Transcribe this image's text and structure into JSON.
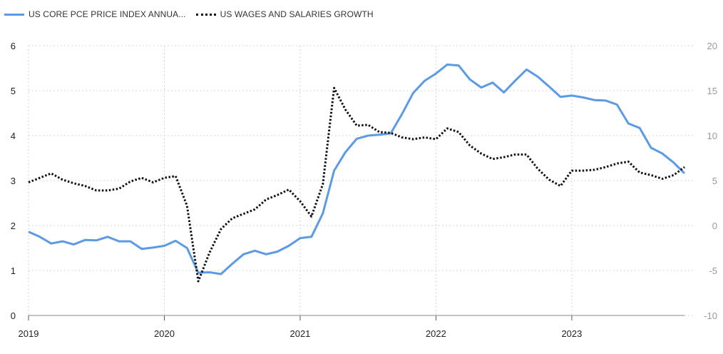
{
  "chart_data": {
    "type": "line",
    "title": "",
    "xlabel": "",
    "ylabel": "",
    "legend_position": "top-left",
    "grid": true,
    "x_ticks": [
      "2019",
      "2020",
      "2021",
      "2022",
      "2023"
    ],
    "y_left": {
      "range": [
        0,
        6
      ],
      "ticks": [
        "0",
        "1",
        "2",
        "3",
        "4",
        "5",
        "6"
      ]
    },
    "y_right": {
      "range": [
        -10,
        20
      ],
      "ticks": [
        "-10",
        "-5",
        "0",
        "5",
        "10",
        "15",
        "20"
      ]
    },
    "x_range": [
      2019.0,
      2023.83
    ],
    "series": [
      {
        "name": "US CORE PCE PRICE INDEX ANNUA...",
        "axis": "left",
        "style": "solid",
        "color": "#5B9BE6",
        "x": [
          2019.0,
          2019.083,
          2019.167,
          2019.25,
          2019.333,
          2019.417,
          2019.5,
          2019.583,
          2019.667,
          2019.75,
          2019.833,
          2019.917,
          2020.0,
          2020.083,
          2020.167,
          2020.25,
          2020.333,
          2020.417,
          2020.5,
          2020.583,
          2020.667,
          2020.75,
          2020.833,
          2020.917,
          2021.0,
          2021.083,
          2021.167,
          2021.25,
          2021.333,
          2021.417,
          2021.5,
          2021.583,
          2021.667,
          2021.75,
          2021.833,
          2021.917,
          2022.0,
          2022.083,
          2022.167,
          2022.25,
          2022.333,
          2022.417,
          2022.5,
          2022.583,
          2022.667,
          2022.75,
          2022.833,
          2022.917,
          2023.0,
          2023.083,
          2023.167,
          2023.25,
          2023.333,
          2023.417,
          2023.5,
          2023.583,
          2023.667,
          2023.75,
          2023.83
        ],
        "values": [
          1.86,
          1.75,
          1.6,
          1.65,
          1.58,
          1.68,
          1.67,
          1.75,
          1.65,
          1.65,
          1.48,
          1.51,
          1.55,
          1.66,
          1.5,
          0.95,
          0.96,
          0.92,
          1.15,
          1.36,
          1.44,
          1.36,
          1.42,
          1.55,
          1.72,
          1.75,
          2.27,
          3.22,
          3.63,
          3.93,
          4.0,
          4.02,
          4.05,
          4.48,
          4.95,
          5.22,
          5.38,
          5.58,
          5.56,
          5.25,
          5.07,
          5.18,
          4.96,
          5.22,
          5.47,
          5.31,
          5.09,
          4.86,
          4.89,
          4.85,
          4.79,
          4.78,
          4.69,
          4.27,
          4.17,
          3.73,
          3.6,
          3.4,
          3.16
        ]
      },
      {
        "name": "US WAGES AND SALARIES GROWTH",
        "axis": "right",
        "style": "dotted",
        "color": "#111111",
        "x": [
          2019.0,
          2019.083,
          2019.167,
          2019.25,
          2019.333,
          2019.417,
          2019.5,
          2019.583,
          2019.667,
          2019.75,
          2019.833,
          2019.917,
          2020.0,
          2020.083,
          2020.167,
          2020.25,
          2020.333,
          2020.417,
          2020.5,
          2020.583,
          2020.667,
          2020.75,
          2020.833,
          2020.917,
          2021.0,
          2021.083,
          2021.167,
          2021.25,
          2021.333,
          2021.417,
          2021.5,
          2021.583,
          2021.667,
          2021.75,
          2021.833,
          2021.917,
          2022.0,
          2022.083,
          2022.167,
          2022.25,
          2022.333,
          2022.417,
          2022.5,
          2022.583,
          2022.667,
          2022.75,
          2022.833,
          2022.917,
          2023.0,
          2023.083,
          2023.167,
          2023.25,
          2023.333,
          2023.417,
          2023.5,
          2023.583,
          2023.667,
          2023.75,
          2023.83
        ],
        "values": [
          4.8,
          5.3,
          5.8,
          5.1,
          4.7,
          4.4,
          3.9,
          3.9,
          4.1,
          4.9,
          5.3,
          4.8,
          5.3,
          5.5,
          2.2,
          -6.2,
          -3.0,
          -0.4,
          0.8,
          1.3,
          1.8,
          2.9,
          3.4,
          4.0,
          2.7,
          1.0,
          4.6,
          15.3,
          12.9,
          11.1,
          11.2,
          10.4,
          10.3,
          9.8,
          9.6,
          9.8,
          9.6,
          10.8,
          10.4,
          8.9,
          8.0,
          7.4,
          7.6,
          7.9,
          7.9,
          6.3,
          5.1,
          4.4,
          6.1,
          6.1,
          6.2,
          6.5,
          6.9,
          7.1,
          5.9,
          5.6,
          5.2,
          5.6,
          6.5
        ]
      }
    ]
  }
}
